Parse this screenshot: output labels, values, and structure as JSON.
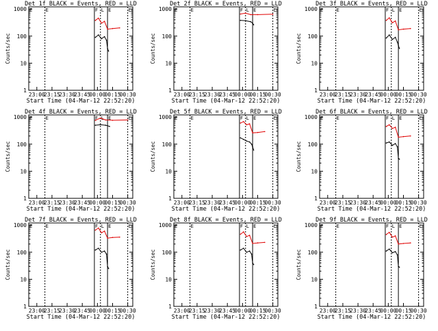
{
  "figure": {
    "start_time_label": "Start Time (04-Mar-12 22:52:20)",
    "ylabel": "Counts/sec"
  },
  "colors": {
    "events": "#000000",
    "lld": "#e00000",
    "axes": "#000000",
    "background": "#ffffff"
  },
  "chart_data": [
    {
      "type": "line",
      "title": "Det 1f BLACK = Events, RED = LLD",
      "xlabel": "Start Time (04-Mar-12 22:52:20)",
      "ylabel": "Counts/sec",
      "yscale": "log",
      "ylim": [
        1,
        1000
      ],
      "xlim": [
        "22:52",
        "00:35"
      ],
      "xticks": [
        "23:00",
        "23:15",
        "23:30",
        "23:45",
        "00:00",
        "00:15",
        "00:30"
      ],
      "yticks": [
        "1",
        "10",
        "100",
        "1000"
      ],
      "markers": [
        "E",
        "E",
        "F",
        "L",
        "E",
        "L"
      ],
      "series": [
        {
          "name": "BLACK = Events",
          "x": [
            "23:58",
            "00:01",
            "00:04",
            "00:07",
            "00:09",
            "00:10",
            "00:11"
          ],
          "y": [
            90,
            110,
            80,
            95,
            70,
            35,
            28
          ]
        },
        {
          "name": "RED = LLD",
          "x": [
            "23:58",
            "00:01",
            "00:04",
            "00:07",
            "00:10",
            "00:15",
            "00:22"
          ],
          "y": [
            380,
            460,
            300,
            350,
            180,
            190,
            200
          ]
        }
      ]
    },
    {
      "type": "line",
      "title": "Det 2f BLACK = Events, RED = LLD",
      "xlabel": "Start Time (04-Mar-12 22:52:20)",
      "ylabel": "Counts/sec",
      "yscale": "log",
      "ylim": [
        1,
        1000
      ],
      "xlim": [
        "22:52",
        "00:35"
      ],
      "xticks": [
        "23:00",
        "23:15",
        "23:30",
        "23:45",
        "00:00",
        "00:15",
        "00:30"
      ],
      "yticks": [
        "1",
        "10",
        "100",
        "1000"
      ],
      "markers": [
        "E",
        "E",
        "F",
        "L",
        "E",
        "L"
      ],
      "series": [
        {
          "name": "BLACK = Events",
          "x": [
            "23:58",
            "00:03",
            "00:08",
            "00:10",
            "00:11"
          ],
          "y": [
            380,
            370,
            340,
            300,
            260
          ]
        },
        {
          "name": "RED = LLD",
          "x": [
            "23:58",
            "00:03",
            "00:08",
            "00:15",
            "00:30"
          ],
          "y": [
            650,
            700,
            620,
            620,
            640
          ]
        }
      ]
    },
    {
      "type": "line",
      "title": "Det 3f BLACK = Events, RED = LLD",
      "xlabel": "Start Time (04-Mar-12 22:52:20)",
      "ylabel": "Counts/sec",
      "yscale": "log",
      "ylim": [
        1,
        1000
      ],
      "xlim": [
        "22:52",
        "00:35"
      ],
      "xticks": [
        "23:00",
        "23:15",
        "23:30",
        "23:45",
        "00:00",
        "00:15",
        "00:30"
      ],
      "yticks": [
        "1",
        "10",
        "100",
        "1000"
      ],
      "markers": [
        "E",
        "E",
        "F",
        "L",
        "E",
        "L"
      ],
      "series": [
        {
          "name": "BLACK = Events",
          "x": [
            "23:58",
            "00:01",
            "00:04",
            "00:07",
            "00:09",
            "00:10",
            "00:11"
          ],
          "y": [
            85,
            110,
            75,
            90,
            60,
            45,
            35
          ]
        },
        {
          "name": "RED = LLD",
          "x": [
            "23:58",
            "00:01",
            "00:04",
            "00:07",
            "00:10",
            "00:15",
            "00:22"
          ],
          "y": [
            380,
            470,
            310,
            360,
            170,
            180,
            190
          ]
        }
      ]
    },
    {
      "type": "line",
      "title": "Det 4f BLACK = Events, RED = LLD",
      "xlabel": "Start Time (04-Mar-12 22:52:20)",
      "ylabel": "Counts/sec",
      "yscale": "log",
      "ylim": [
        1,
        1000
      ],
      "xlim": [
        "22:52",
        "00:35"
      ],
      "xticks": [
        "23:00",
        "23:15",
        "23:30",
        "23:45",
        "00:00",
        "00:15",
        "00:30"
      ],
      "yticks": [
        "1",
        "10",
        "100",
        "1000"
      ],
      "markers": [
        "E",
        "E",
        "F",
        "L",
        "E",
        "L"
      ],
      "series": [
        {
          "name": "BLACK = Events",
          "x": [
            "23:58",
            "00:03",
            "00:08",
            "00:10",
            "00:12"
          ],
          "y": [
            500,
            520,
            500,
            480,
            450
          ]
        },
        {
          "name": "RED = LLD",
          "x": [
            "23:58",
            "00:03",
            "00:08",
            "00:15",
            "00:30"
          ],
          "y": [
            760,
            920,
            780,
            760,
            780
          ]
        }
      ]
    },
    {
      "type": "line",
      "title": "Det 5f BLACK = Events, RED = LLD",
      "xlabel": "Start Time (04-Mar-12 22:52:20)",
      "ylabel": "Counts/sec",
      "yscale": "log",
      "ylim": [
        1,
        1000
      ],
      "xlim": [
        "22:52",
        "00:35"
      ],
      "xticks": [
        "23:00",
        "23:15",
        "23:30",
        "23:45",
        "00:00",
        "00:15",
        "00:30"
      ],
      "yticks": [
        "1",
        "10",
        "100",
        "1000"
      ],
      "markers": [
        "E",
        "E",
        "F",
        "L",
        "E",
        "L"
      ],
      "series": [
        {
          "name": "BLACK = Events",
          "x": [
            "23:58",
            "00:01",
            "00:04",
            "00:07",
            "00:09",
            "00:10",
            "00:11"
          ],
          "y": [
            170,
            150,
            130,
            120,
            100,
            80,
            60
          ]
        },
        {
          "name": "RED = LLD",
          "x": [
            "23:58",
            "00:01",
            "00:04",
            "00:07",
            "00:10",
            "00:15",
            "00:22"
          ],
          "y": [
            600,
            680,
            520,
            560,
            260,
            270,
            290
          ]
        }
      ]
    },
    {
      "type": "line",
      "title": "Det 6f BLACK = Events, RED = LLD",
      "xlabel": "Start Time (04-Mar-12 22:52:20)",
      "ylabel": "Counts/sec",
      "yscale": "log",
      "ylim": [
        1,
        1000
      ],
      "xlim": [
        "22:52",
        "00:35"
      ],
      "xticks": [
        "23:00",
        "23:15",
        "23:30",
        "23:45",
        "00:00",
        "00:15",
        "00:30"
      ],
      "yticks": [
        "1",
        "10",
        "100",
        "1000"
      ],
      "markers": [
        "E",
        "E",
        "F",
        "L",
        "E",
        "L"
      ],
      "series": [
        {
          "name": "BLACK = Events",
          "x": [
            "23:58",
            "00:01",
            "00:04",
            "00:07",
            "00:09",
            "00:10",
            "00:11"
          ],
          "y": [
            110,
            120,
            90,
            105,
            80,
            30,
            28
          ]
        },
        {
          "name": "RED = LLD",
          "x": [
            "23:58",
            "00:01",
            "00:04",
            "00:07",
            "00:10",
            "00:15",
            "00:22"
          ],
          "y": [
            450,
            520,
            380,
            420,
            180,
            190,
            200
          ]
        }
      ]
    },
    {
      "type": "line",
      "title": "Det 7f BLACK = Events, RED = LLD",
      "xlabel": "Start Time (04-Mar-12 22:52:20)",
      "ylabel": "Counts/sec",
      "yscale": "log",
      "ylim": [
        1,
        1000
      ],
      "xlim": [
        "22:52",
        "00:35"
      ],
      "xticks": [
        "23:00",
        "23:15",
        "23:30",
        "23:45",
        "00:00",
        "00:15",
        "00:30"
      ],
      "yticks": [
        "1",
        "10",
        "100",
        "1000"
      ],
      "markers": [
        "E",
        "E",
        "F",
        "L",
        "E",
        "L"
      ],
      "series": [
        {
          "name": "BLACK = Events",
          "x": [
            "23:58",
            "00:01",
            "00:04",
            "00:07",
            "00:09",
            "00:10",
            "00:11"
          ],
          "y": [
            120,
            140,
            100,
            110,
            85,
            30,
            25
          ]
        },
        {
          "name": "RED = LLD",
          "x": [
            "23:58",
            "00:01",
            "00:04",
            "00:07",
            "00:10",
            "00:15",
            "00:22"
          ],
          "y": [
            650,
            780,
            520,
            600,
            330,
            350,
            360
          ]
        }
      ]
    },
    {
      "type": "line",
      "title": "Det 8f BLACK = Events, RED = LLD",
      "xlabel": "Start Time (04-Mar-12 22:52:20)",
      "ylabel": "Counts/sec",
      "yscale": "log",
      "ylim": [
        1,
        1000
      ],
      "xlim": [
        "22:52",
        "00:35"
      ],
      "xticks": [
        "23:00",
        "23:15",
        "23:30",
        "23:45",
        "00:00",
        "00:15",
        "00:30"
      ],
      "yticks": [
        "1",
        "10",
        "100",
        "1000"
      ],
      "markers": [
        "E",
        "E",
        "F",
        "L",
        "E",
        "L"
      ],
      "series": [
        {
          "name": "BLACK = Events",
          "x": [
            "23:58",
            "00:01",
            "00:04",
            "00:07",
            "00:09",
            "00:10",
            "00:11"
          ],
          "y": [
            120,
            140,
            100,
            110,
            85,
            40,
            35
          ]
        },
        {
          "name": "RED = LLD",
          "x": [
            "23:58",
            "00:01",
            "00:04",
            "00:07",
            "00:10",
            "00:15",
            "00:22"
          ],
          "y": [
            460,
            560,
            380,
            420,
            210,
            220,
            230
          ]
        }
      ]
    },
    {
      "type": "line",
      "title": "Det 9f BLACK = Events, RED = LLD",
      "xlabel": "Start Time (04-Mar-12 22:52:20)",
      "ylabel": "Counts/sec",
      "yscale": "log",
      "ylim": [
        1,
        1000
      ],
      "xlim": [
        "22:52",
        "00:35"
      ],
      "xticks": [
        "23:00",
        "23:15",
        "23:30",
        "23:45",
        "00:00",
        "00:15",
        "00:30"
      ],
      "yticks": [
        "1",
        "10",
        "100",
        "1000"
      ],
      "markers": [
        "E",
        "E",
        "F",
        "L",
        "E",
        "L"
      ],
      "series": [
        {
          "name": "BLACK = Events",
          "x": [
            "23:58",
            "00:01",
            "00:04",
            "00:07",
            "00:09",
            "00:10",
            "00:11"
          ],
          "y": [
            110,
            130,
            95,
            105,
            80,
            30,
            28
          ]
        },
        {
          "name": "RED = LLD",
          "x": [
            "23:58",
            "00:01",
            "00:04",
            "00:07",
            "00:10",
            "00:15",
            "00:22"
          ],
          "y": [
            450,
            540,
            360,
            400,
            200,
            210,
            220
          ]
        }
      ]
    }
  ]
}
